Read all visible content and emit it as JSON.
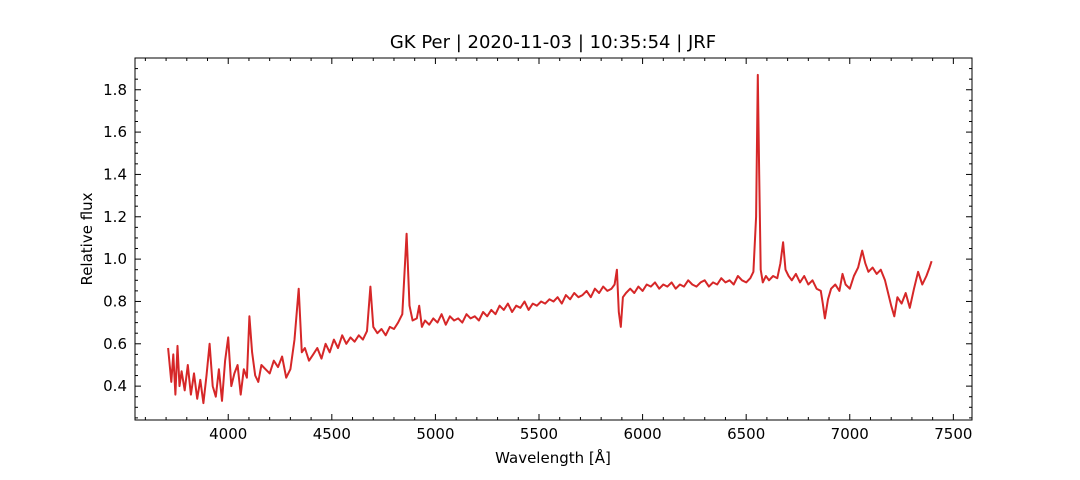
{
  "chart_data": {
    "type": "line",
    "title": "GK Per | 2020-11-03 | 10:35:54 | JRF",
    "xlabel": "Wavelength [Å]",
    "ylabel": "Relative flux",
    "xlim": [
      3550,
      7590
    ],
    "ylim": [
      0.24,
      1.95
    ],
    "x_ticks": [
      4000,
      4500,
      5000,
      5500,
      6000,
      6500,
      7000,
      7500
    ],
    "x_tick_labels": [
      "4000",
      "4500",
      "5000",
      "5500",
      "6000",
      "6500",
      "7000",
      "7500"
    ],
    "y_ticks": [
      0.4,
      0.6,
      0.8,
      1.0,
      1.2,
      1.4,
      1.6,
      1.8
    ],
    "y_tick_labels": [
      "0.4",
      "0.6",
      "0.8",
      "1.0",
      "1.2",
      "1.4",
      "1.6",
      "1.8"
    ],
    "grid": false,
    "series": [
      {
        "color": "#d62728",
        "x": [
          3710,
          3725,
          3735,
          3745,
          3755,
          3765,
          3775,
          3790,
          3805,
          3820,
          3835,
          3850,
          3865,
          3880,
          3895,
          3910,
          3925,
          3940,
          3955,
          3970,
          3985,
          4000,
          4015,
          4030,
          4045,
          4060,
          4075,
          4090,
          4102,
          4115,
          4130,
          4145,
          4160,
          4180,
          4200,
          4220,
          4240,
          4260,
          4280,
          4300,
          4320,
          4340,
          4355,
          4370,
          4390,
          4410,
          4430,
          4450,
          4470,
          4490,
          4510,
          4530,
          4550,
          4570,
          4590,
          4610,
          4630,
          4650,
          4670,
          4686,
          4700,
          4720,
          4740,
          4760,
          4780,
          4800,
          4820,
          4840,
          4861,
          4875,
          4890,
          4910,
          4922,
          4935,
          4950,
          4970,
          4990,
          5010,
          5030,
          5050,
          5070,
          5090,
          5110,
          5130,
          5150,
          5170,
          5190,
          5210,
          5230,
          5250,
          5270,
          5290,
          5310,
          5330,
          5350,
          5370,
          5390,
          5410,
          5430,
          5450,
          5470,
          5490,
          5510,
          5530,
          5550,
          5570,
          5590,
          5610,
          5630,
          5650,
          5670,
          5690,
          5710,
          5730,
          5750,
          5770,
          5790,
          5810,
          5830,
          5850,
          5865,
          5876,
          5885,
          5895,
          5905,
          5920,
          5940,
          5960,
          5980,
          6000,
          6020,
          6040,
          6060,
          6080,
          6100,
          6120,
          6140,
          6160,
          6180,
          6200,
          6220,
          6240,
          6260,
          6280,
          6300,
          6320,
          6340,
          6360,
          6380,
          6400,
          6420,
          6440,
          6460,
          6480,
          6500,
          6520,
          6535,
          6548,
          6556,
          6563,
          6570,
          6580,
          6595,
          6610,
          6630,
          6650,
          6665,
          6678,
          6690,
          6705,
          6720,
          6740,
          6760,
          6780,
          6800,
          6820,
          6840,
          6860,
          6870,
          6880,
          6895,
          6910,
          6930,
          6950,
          6965,
          6980,
          7000,
          7020,
          7040,
          7060,
          7075,
          7090,
          7110,
          7130,
          7150,
          7170,
          7185,
          7200,
          7215,
          7230,
          7250,
          7270,
          7290,
          7310,
          7330,
          7350,
          7370,
          7385,
          7395
        ],
        "y": [
          0.58,
          0.42,
          0.55,
          0.36,
          0.59,
          0.4,
          0.47,
          0.38,
          0.5,
          0.36,
          0.46,
          0.34,
          0.43,
          0.32,
          0.45,
          0.6,
          0.4,
          0.35,
          0.48,
          0.33,
          0.52,
          0.63,
          0.4,
          0.46,
          0.5,
          0.36,
          0.48,
          0.44,
          0.73,
          0.56,
          0.45,
          0.42,
          0.5,
          0.48,
          0.46,
          0.52,
          0.49,
          0.54,
          0.44,
          0.48,
          0.62,
          0.86,
          0.56,
          0.58,
          0.52,
          0.55,
          0.58,
          0.53,
          0.6,
          0.56,
          0.62,
          0.58,
          0.64,
          0.6,
          0.63,
          0.61,
          0.64,
          0.62,
          0.66,
          0.87,
          0.68,
          0.65,
          0.67,
          0.64,
          0.68,
          0.67,
          0.7,
          0.74,
          1.12,
          0.78,
          0.71,
          0.72,
          0.78,
          0.68,
          0.71,
          0.69,
          0.72,
          0.7,
          0.74,
          0.69,
          0.73,
          0.71,
          0.72,
          0.7,
          0.74,
          0.72,
          0.73,
          0.71,
          0.75,
          0.73,
          0.76,
          0.74,
          0.78,
          0.76,
          0.79,
          0.75,
          0.78,
          0.77,
          0.8,
          0.76,
          0.79,
          0.78,
          0.8,
          0.79,
          0.81,
          0.8,
          0.82,
          0.79,
          0.83,
          0.81,
          0.84,
          0.82,
          0.83,
          0.85,
          0.82,
          0.86,
          0.84,
          0.87,
          0.85,
          0.86,
          0.88,
          0.95,
          0.75,
          0.68,
          0.82,
          0.84,
          0.86,
          0.84,
          0.87,
          0.85,
          0.88,
          0.87,
          0.89,
          0.86,
          0.88,
          0.87,
          0.89,
          0.86,
          0.88,
          0.87,
          0.9,
          0.88,
          0.87,
          0.89,
          0.9,
          0.87,
          0.89,
          0.88,
          0.91,
          0.89,
          0.9,
          0.88,
          0.92,
          0.9,
          0.89,
          0.91,
          0.94,
          1.2,
          1.87,
          1.4,
          0.95,
          0.89,
          0.92,
          0.9,
          0.92,
          0.91,
          0.98,
          1.08,
          0.95,
          0.92,
          0.9,
          0.93,
          0.89,
          0.92,
          0.88,
          0.9,
          0.86,
          0.85,
          0.79,
          0.72,
          0.81,
          0.86,
          0.88,
          0.85,
          0.93,
          0.88,
          0.86,
          0.92,
          0.96,
          1.04,
          0.98,
          0.94,
          0.96,
          0.93,
          0.95,
          0.9,
          0.84,
          0.78,
          0.73,
          0.82,
          0.79,
          0.84,
          0.77,
          0.86,
          0.94,
          0.88,
          0.92,
          0.96,
          0.99
        ]
      }
    ]
  }
}
